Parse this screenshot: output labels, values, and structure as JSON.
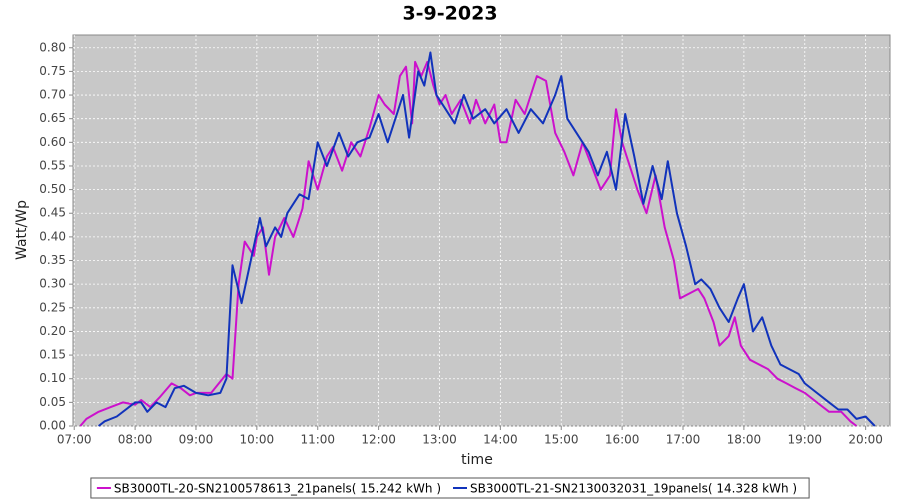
{
  "chart_data": {
    "type": "line",
    "title": "3-9-2023",
    "x_label": "time",
    "y_label": "Watt/Wp",
    "xlim": [
      6.98,
      20.4
    ],
    "ylim": [
      0,
      0.827
    ],
    "grid": true,
    "legend": "bottom",
    "xticks": [
      {
        "value": 7,
        "label": "07:00"
      },
      {
        "value": 8,
        "label": "08:00"
      },
      {
        "value": 9,
        "label": "09:00"
      },
      {
        "value": 10,
        "label": "10:00"
      },
      {
        "value": 11,
        "label": "11:00"
      },
      {
        "value": 12,
        "label": "12:00"
      },
      {
        "value": 13,
        "label": "13:00"
      },
      {
        "value": 14,
        "label": "14:00"
      },
      {
        "value": 15,
        "label": "15:00"
      },
      {
        "value": 16,
        "label": "16:00"
      },
      {
        "value": 17,
        "label": "17:00"
      },
      {
        "value": 18,
        "label": "18:00"
      },
      {
        "value": 19,
        "label": "19:00"
      },
      {
        "value": 20,
        "label": "20:00"
      }
    ],
    "yticks": [
      {
        "value": 0,
        "label": "0.00"
      },
      {
        "value": 0.05,
        "label": "0.05"
      },
      {
        "value": 0.1,
        "label": "0.10"
      },
      {
        "value": 0.15,
        "label": "0.15"
      },
      {
        "value": 0.2,
        "label": "0.20"
      },
      {
        "value": 0.25,
        "label": "0.25"
      },
      {
        "value": 0.3,
        "label": "0.30"
      },
      {
        "value": 0.35,
        "label": "0.35"
      },
      {
        "value": 0.4,
        "label": "0.40"
      },
      {
        "value": 0.45,
        "label": "0.45"
      },
      {
        "value": 0.5,
        "label": "0.50"
      },
      {
        "value": 0.55,
        "label": "0.55"
      },
      {
        "value": 0.6,
        "label": "0.60"
      },
      {
        "value": 0.65,
        "label": "0.65"
      },
      {
        "value": 0.7,
        "label": "0.70"
      },
      {
        "value": 0.75,
        "label": "0.75"
      },
      {
        "value": 0.8,
        "label": "0.80"
      }
    ],
    "series": [
      {
        "name": "SB3000TL-20-SN2100578613_21panels( 15.242 kWh )",
        "color": "#cc11cc",
        "x": [
          7.1,
          7.2,
          7.4,
          7.6,
          7.8,
          8.0,
          8.1,
          8.25,
          8.4,
          8.6,
          8.75,
          8.9,
          9.0,
          9.25,
          9.5,
          9.6,
          9.7,
          9.8,
          9.95,
          10.0,
          10.1,
          10.2,
          10.3,
          10.45,
          10.6,
          10.75,
          10.85,
          11.0,
          11.15,
          11.25,
          11.4,
          11.55,
          11.7,
          11.85,
          12.0,
          12.1,
          12.25,
          12.35,
          12.45,
          12.55,
          12.6,
          12.7,
          12.8,
          12.9,
          13.0,
          13.1,
          13.2,
          13.35,
          13.5,
          13.6,
          13.75,
          13.9,
          14.0,
          14.1,
          14.25,
          14.4,
          14.6,
          14.75,
          14.9,
          15.05,
          15.2,
          15.35,
          15.5,
          15.65,
          15.8,
          15.9,
          16.0,
          16.1,
          16.25,
          16.4,
          16.55,
          16.7,
          16.85,
          16.95,
          17.1,
          17.25,
          17.35,
          17.5,
          17.6,
          17.75,
          17.85,
          17.95,
          18.1,
          18.25,
          18.4,
          18.55,
          18.7,
          18.85,
          19.0,
          19.2,
          19.4,
          19.6,
          19.75,
          19.85
        ],
        "values": [
          0,
          0.015,
          0.03,
          0.04,
          0.05,
          0.045,
          0.055,
          0.04,
          0.06,
          0.09,
          0.08,
          0.065,
          0.07,
          0.07,
          0.11,
          0.1,
          0.3,
          0.39,
          0.36,
          0.4,
          0.42,
          0.32,
          0.4,
          0.44,
          0.4,
          0.46,
          0.56,
          0.5,
          0.57,
          0.59,
          0.54,
          0.6,
          0.57,
          0.63,
          0.7,
          0.68,
          0.66,
          0.74,
          0.76,
          0.64,
          0.77,
          0.74,
          0.77,
          0.72,
          0.68,
          0.7,
          0.66,
          0.69,
          0.64,
          0.69,
          0.64,
          0.68,
          0.6,
          0.6,
          0.69,
          0.66,
          0.74,
          0.73,
          0.62,
          0.58,
          0.53,
          0.6,
          0.55,
          0.5,
          0.53,
          0.67,
          0.6,
          0.56,
          0.5,
          0.45,
          0.53,
          0.42,
          0.35,
          0.27,
          0.28,
          0.29,
          0.27,
          0.22,
          0.17,
          0.19,
          0.23,
          0.17,
          0.14,
          0.13,
          0.12,
          0.1,
          0.09,
          0.08,
          0.07,
          0.05,
          0.03,
          0.03,
          0.01,
          0
        ]
      },
      {
        "name": "SB3000TL-21-SN2130032031_19panels( 14.328 kWh )",
        "color": "#1133bb",
        "x": [
          7.4,
          7.5,
          7.7,
          7.9,
          8.0,
          8.1,
          8.2,
          8.35,
          8.5,
          8.65,
          8.8,
          9.0,
          9.2,
          9.4,
          9.5,
          9.6,
          9.75,
          9.9,
          10.05,
          10.15,
          10.3,
          10.4,
          10.5,
          10.7,
          10.85,
          11.0,
          11.15,
          11.35,
          11.5,
          11.65,
          11.85,
          12.0,
          12.15,
          12.3,
          12.4,
          12.5,
          12.65,
          12.75,
          12.85,
          12.95,
          13.1,
          13.25,
          13.4,
          13.55,
          13.75,
          13.9,
          14.1,
          14.3,
          14.5,
          14.7,
          14.9,
          15.0,
          15.1,
          15.25,
          15.45,
          15.6,
          15.75,
          15.9,
          16.05,
          16.2,
          16.35,
          16.5,
          16.65,
          16.75,
          16.9,
          17.05,
          17.2,
          17.3,
          17.45,
          17.6,
          17.75,
          17.9,
          18.0,
          18.15,
          18.3,
          18.45,
          18.6,
          18.75,
          18.9,
          19.0,
          19.2,
          19.4,
          19.55,
          19.7,
          19.85,
          20.0,
          20.15
        ],
        "values": [
          0,
          0.01,
          0.02,
          0.04,
          0.05,
          0.05,
          0.03,
          0.05,
          0.04,
          0.08,
          0.085,
          0.07,
          0.065,
          0.07,
          0.1,
          0.34,
          0.26,
          0.35,
          0.44,
          0.38,
          0.42,
          0.4,
          0.45,
          0.49,
          0.48,
          0.6,
          0.55,
          0.62,
          0.57,
          0.6,
          0.61,
          0.66,
          0.6,
          0.66,
          0.7,
          0.61,
          0.75,
          0.72,
          0.79,
          0.7,
          0.67,
          0.64,
          0.7,
          0.65,
          0.67,
          0.64,
          0.67,
          0.62,
          0.67,
          0.64,
          0.7,
          0.74,
          0.65,
          0.62,
          0.58,
          0.53,
          0.58,
          0.5,
          0.66,
          0.57,
          0.47,
          0.55,
          0.48,
          0.56,
          0.45,
          0.38,
          0.3,
          0.31,
          0.29,
          0.25,
          0.22,
          0.27,
          0.3,
          0.2,
          0.23,
          0.17,
          0.13,
          0.12,
          0.11,
          0.09,
          0.07,
          0.05,
          0.035,
          0.035,
          0.015,
          0.02,
          0
        ]
      }
    ]
  }
}
